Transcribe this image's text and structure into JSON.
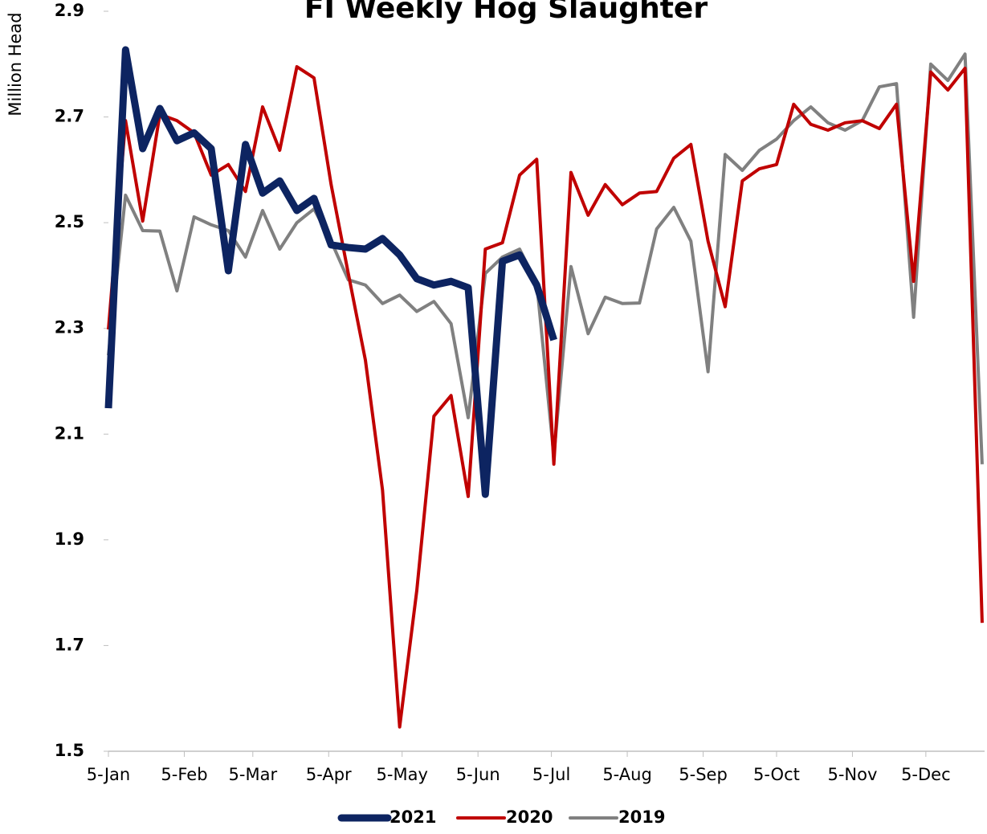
{
  "chart_data": {
    "type": "line",
    "title": "FI Weekly Hog Slaughter",
    "y_label": "Million Head",
    "x": [
      0,
      7,
      14,
      21,
      28,
      35,
      42,
      49,
      56,
      63,
      70,
      77,
      84,
      91,
      98,
      105,
      112,
      119,
      126,
      133,
      140,
      147,
      154,
      161,
      168,
      175,
      182,
      189,
      196,
      203,
      210,
      217,
      224,
      231,
      238,
      245,
      252,
      259,
      266,
      273,
      280,
      287,
      294,
      301,
      308,
      315,
      322,
      329,
      336,
      343,
      350,
      357
    ],
    "xlim": [
      0,
      358
    ],
    "xticks": [
      {
        "value": 0,
        "label": "5-Jan"
      },
      {
        "value": 31,
        "label": "5-Feb"
      },
      {
        "value": 59,
        "label": "5-Mar"
      },
      {
        "value": 90,
        "label": "5-Apr"
      },
      {
        "value": 120,
        "label": "5-May"
      },
      {
        "value": 151,
        "label": "5-Jun"
      },
      {
        "value": 181,
        "label": "5-Jul"
      },
      {
        "value": 212,
        "label": "5-Aug"
      },
      {
        "value": 243,
        "label": "5-Sep"
      },
      {
        "value": 273,
        "label": "5-Oct"
      },
      {
        "value": 304,
        "label": "5-Nov"
      },
      {
        "value": 334,
        "label": "5-Dec"
      }
    ],
    "ylim": [
      1.5,
      2.9
    ],
    "yticks": [
      1.5,
      1.7,
      1.9,
      2.1,
      2.3,
      2.5,
      2.7,
      2.9
    ],
    "legend": "bottom",
    "series": [
      {
        "name": "2021",
        "color": "#0d2461",
        "line_width": 9,
        "values": [
          2.149,
          2.827,
          2.64,
          2.716,
          2.655,
          2.67,
          2.64,
          2.409,
          2.648,
          2.556,
          2.579,
          2.523,
          2.546,
          2.458,
          2.453,
          2.45,
          2.47,
          2.439,
          2.394,
          2.382,
          2.389,
          2.377,
          1.986,
          2.427,
          2.439,
          2.382,
          2.278,
          null,
          null,
          null,
          null,
          null,
          null,
          null,
          null,
          null,
          null,
          null,
          null,
          null,
          null,
          null,
          null,
          null,
          null,
          null,
          null,
          null,
          null,
          null,
          null,
          null
        ]
      },
      {
        "name": "2020",
        "color": "#c00000",
        "line_width": 4,
        "values": [
          2.298,
          2.693,
          2.503,
          2.705,
          2.693,
          2.67,
          2.59,
          2.61,
          2.559,
          2.719,
          2.637,
          2.795,
          2.774,
          2.572,
          2.404,
          2.24,
          1.994,
          1.546,
          1.804,
          2.134,
          2.173,
          1.982,
          2.45,
          2.462,
          2.59,
          2.62,
          2.043,
          2.595,
          2.514,
          2.572,
          2.534,
          2.556,
          2.559,
          2.622,
          2.648,
          2.465,
          2.341,
          2.579,
          2.602,
          2.61,
          2.724,
          2.686,
          2.675,
          2.689,
          2.693,
          2.678,
          2.724,
          2.389,
          2.785,
          2.751,
          2.792,
          1.743
        ]
      },
      {
        "name": "2019",
        "color": "#808080",
        "line_width": 4,
        "values": [
          2.249,
          2.552,
          2.485,
          2.484,
          2.371,
          2.511,
          2.496,
          2.485,
          2.435,
          2.523,
          2.45,
          2.5,
          2.526,
          2.465,
          2.392,
          2.382,
          2.347,
          2.363,
          2.332,
          2.351,
          2.309,
          2.131,
          2.404,
          2.435,
          2.45,
          2.386,
          2.059,
          2.417,
          2.29,
          2.359,
          2.347,
          2.348,
          2.488,
          2.529,
          2.465,
          2.218,
          2.629,
          2.599,
          2.637,
          2.658,
          2.693,
          2.719,
          2.689,
          2.675,
          2.693,
          2.757,
          2.763,
          2.321,
          2.8,
          2.769,
          2.819,
          2.043
        ]
      }
    ]
  }
}
